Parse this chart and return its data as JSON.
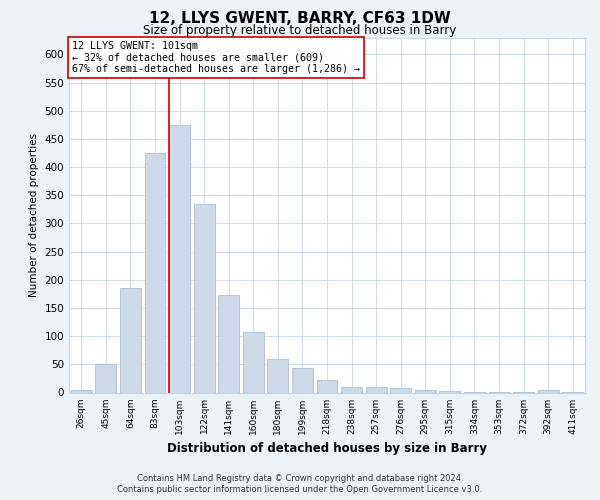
{
  "title": "12, LLYS GWENT, BARRY, CF63 1DW",
  "subtitle": "Size of property relative to detached houses in Barry",
  "xlabel": "Distribution of detached houses by size in Barry",
  "ylabel": "Number of detached properties",
  "bar_color": "#ccd9e8",
  "bar_edge_color": "#aabdd4",
  "marker_line_color": "#cc0000",
  "annotation_title": "12 LLYS GWENT: 101sqm",
  "annotation_line1": "← 32% of detached houses are smaller (609)",
  "annotation_line2": "67% of semi-detached houses are larger (1,286) →",
  "annotation_box_color": "#ffffff",
  "annotation_box_edge": "#cc0000",
  "categories": [
    "26sqm",
    "45sqm",
    "64sqm",
    "83sqm",
    "103sqm",
    "122sqm",
    "141sqm",
    "160sqm",
    "180sqm",
    "199sqm",
    "218sqm",
    "238sqm",
    "257sqm",
    "276sqm",
    "295sqm",
    "315sqm",
    "334sqm",
    "353sqm",
    "372sqm",
    "392sqm",
    "411sqm"
  ],
  "values": [
    4,
    50,
    185,
    425,
    475,
    335,
    173,
    107,
    60,
    44,
    22,
    10,
    10,
    8,
    5,
    3,
    1,
    1,
    1,
    4,
    1
  ],
  "ylim": [
    0,
    630
  ],
  "yticks": [
    0,
    50,
    100,
    150,
    200,
    250,
    300,
    350,
    400,
    450,
    500,
    550,
    600
  ],
  "footer_line1": "Contains HM Land Registry data © Crown copyright and database right 2024.",
  "footer_line2": "Contains public sector information licensed under the Open Government Licence v3.0.",
  "bg_color": "#edf2f7",
  "plot_bg_color": "#ffffff",
  "grid_color": "#c8d4e0"
}
